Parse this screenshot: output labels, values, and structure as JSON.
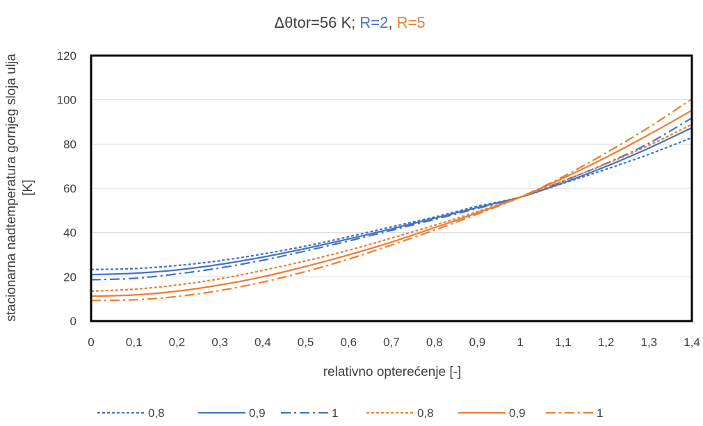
{
  "chart_data": {
    "type": "line",
    "title": {
      "prefix": "Δθtor=56 K; ",
      "r2": "R=2",
      "separator": ", ",
      "r5": "R=5"
    },
    "xlabel": "relativno opterećenje [-]",
    "ylabel_line1": "stacionarna nadtemperatura gornjeg sloja ulja",
    "ylabel_line2": "[K]",
    "xlim": [
      0,
      1.4
    ],
    "ylim": [
      0,
      120
    ],
    "x_ticks": [
      "0",
      "0,1",
      "0,2",
      "0,3",
      "0,4",
      "0,5",
      "0,6",
      "0,7",
      "0,8",
      "0,9",
      "1",
      "1,1",
      "1,2",
      "1,3",
      "1,4"
    ],
    "y_ticks": [
      "0",
      "20",
      "40",
      "60",
      "80",
      "100",
      "120"
    ],
    "grid": "horizontal",
    "legend_position": "bottom",
    "colors": {
      "R2": "#4472C4",
      "R5": "#ED7D31",
      "text": "#404040",
      "grid": "#D9D9D9"
    },
    "x": [
      0,
      0.1,
      0.2,
      0.3,
      0.4,
      0.5,
      0.6,
      0.7,
      0.8,
      0.9,
      1.0,
      1.1,
      1.2,
      1.3,
      1.4
    ],
    "series": [
      {
        "name": "0,8",
        "group": "R2",
        "dash": "dotted",
        "values": [
          23.3,
          23.7,
          25.1,
          27.3,
          30.3,
          33.9,
          38.1,
          42.6,
          47.0,
          51.9,
          56.0,
          62.3,
          68.6,
          75.4,
          82.9
        ]
      },
      {
        "name": "0,9",
        "group": "R2",
        "dash": "solid",
        "values": [
          21.0,
          21.6,
          23.1,
          25.6,
          28.9,
          32.8,
          37.1,
          41.7,
          46.5,
          51.3,
          56.0,
          62.5,
          69.9,
          78.2,
          87.4
        ]
      },
      {
        "name": "1",
        "group": "R2",
        "dash": "dashdot",
        "values": [
          18.7,
          19.3,
          21.3,
          24.0,
          27.5,
          31.7,
          36.2,
          41.0,
          45.9,
          50.9,
          56.0,
          63.3,
          71.2,
          80.4,
          91.8
        ]
      },
      {
        "name": "0,8",
        "group": "R5",
        "dash": "dotted",
        "values": [
          13.5,
          14.4,
          16.3,
          19.1,
          22.9,
          27.2,
          32.0,
          37.5,
          43.3,
          49.5,
          56.0,
          63.4,
          71.0,
          79.4,
          88.9
        ]
      },
      {
        "name": "0,9",
        "group": "R5",
        "dash": "solid",
        "values": [
          11.2,
          11.8,
          13.5,
          16.3,
          20.0,
          24.7,
          29.9,
          35.7,
          42.2,
          48.9,
          56.0,
          64.6,
          74.0,
          84.3,
          95.2
        ]
      },
      {
        "name": "1",
        "group": "R5",
        "dash": "dashdot",
        "values": [
          9.3,
          9.6,
          11.1,
          13.8,
          17.6,
          22.4,
          28.0,
          34.4,
          41.1,
          48.3,
          56.0,
          65.3,
          76.0,
          87.6,
          100.4
        ]
      }
    ]
  }
}
